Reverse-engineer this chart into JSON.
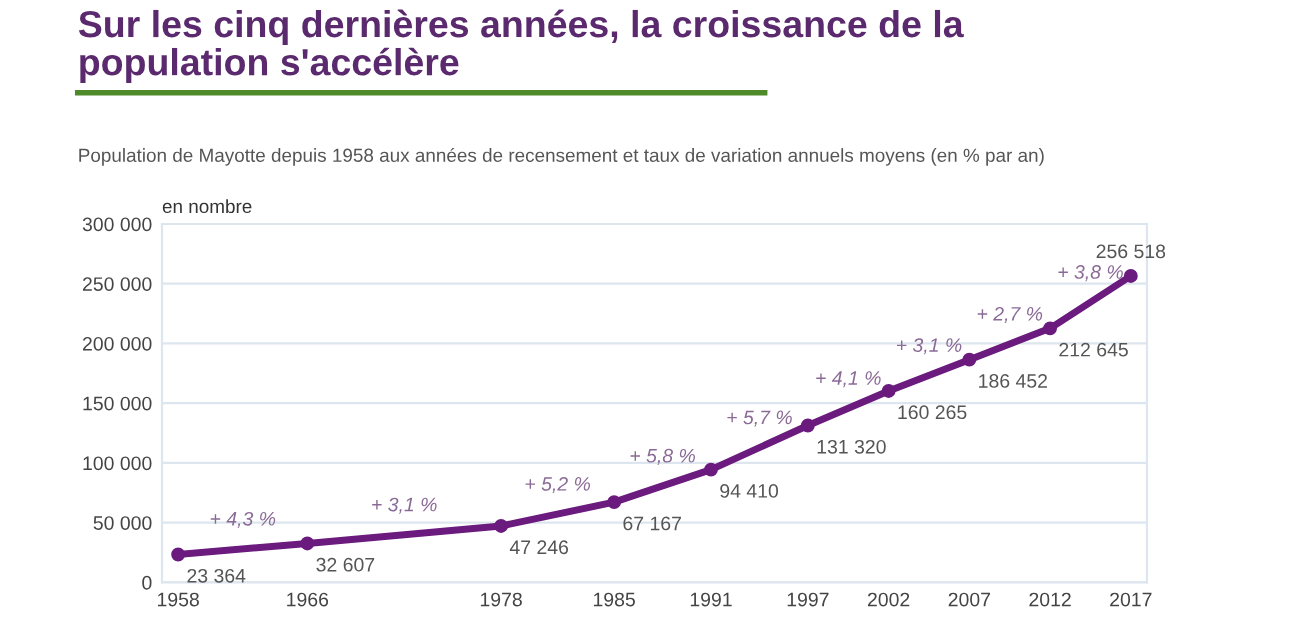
{
  "chart_data": {
    "type": "line",
    "title": "Sur les cinq dernières années, la croissance de la\npopulation s'accélère",
    "subtitle": "Population de Mayotte depuis 1958 aux années de recensement et taux de variation annuels moyens (en % par an)",
    "ylabel": "en nombre",
    "x": [
      1958,
      1966,
      1978,
      1985,
      1991,
      1997,
      2002,
      2007,
      2012,
      2017
    ],
    "series": [
      {
        "color": "#6b1a7e",
        "values": [
          23364,
          32607,
          47246,
          67167,
          94410,
          131320,
          160265,
          186452,
          212645,
          256518
        ],
        "value_labels": [
          "23 364",
          "32 607",
          "47 246",
          "67 167",
          "94 410",
          "131 320",
          "160 265",
          "186 452",
          "212 645",
          "256 518"
        ]
      }
    ],
    "annotations": [
      {
        "text": "+ 4,3 %",
        "x": 1962,
        "y": 27986
      },
      {
        "text": "+ 3,1 %",
        "x": 1972,
        "y": 39927
      },
      {
        "text": "+ 5,2 %",
        "x": 1981.5,
        "y": 57207
      },
      {
        "text": "+ 5,8 %",
        "x": 1988,
        "y": 80789
      },
      {
        "text": "+ 5,7 %",
        "x": 1994,
        "y": 112865
      },
      {
        "text": "+ 4,1 %",
        "x": 1999.5,
        "y": 145793
      },
      {
        "text": "+ 3,1 %",
        "x": 2004.5,
        "y": 173359
      },
      {
        "text": "+ 2,7 %",
        "x": 2009.5,
        "y": 199549
      },
      {
        "text": "+ 3,8 %",
        "x": 2014.5,
        "y": 234582
      }
    ],
    "xlim": [
      1957,
      2018
    ],
    "xticks": [
      1958,
      1966,
      1978,
      1985,
      1991,
      1997,
      2002,
      2007,
      2012,
      2017
    ],
    "ylim": [
      0,
      300000
    ],
    "yticks": [
      0,
      {
        "value": 50000,
        "label": "50 000"
      },
      {
        "value": 100000,
        "label": "100 000"
      },
      {
        "value": 150000,
        "label": "150 000"
      },
      {
        "value": 200000,
        "label": "200 000"
      },
      {
        "value": 250000,
        "label": "250 000"
      },
      {
        "value": 300000,
        "label": "300 000"
      }
    ],
    "grid": "y",
    "marker": "circle",
    "line_style": "solid",
    "legend": false
  }
}
